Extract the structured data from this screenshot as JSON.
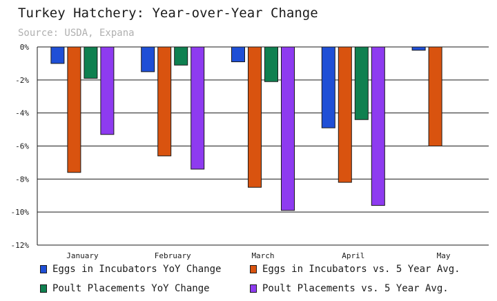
{
  "chart_data": {
    "type": "bar",
    "title": "Turkey Hatchery: Year-over-Year Change",
    "subtitle": "Source: USDA, Expana",
    "categories": [
      "January",
      "February",
      "March",
      "April",
      "May"
    ],
    "series": [
      {
        "name": "Eggs in Incubators YoY Change",
        "color": "#1f4fd6",
        "values": [
          -1.0,
          -1.5,
          -0.9,
          -4.9,
          -0.2
        ]
      },
      {
        "name": "Eggs in Incubators vs. 5 Year Avg.",
        "color": "#d9530f",
        "values": [
          -7.6,
          -6.6,
          -8.5,
          -8.2,
          -6.0
        ]
      },
      {
        "name": "Poult Placements YoY Change",
        "color": "#0f8050",
        "values": [
          -1.9,
          -1.1,
          -2.1,
          -4.4,
          null
        ]
      },
      {
        "name": "Poult Placements vs. 5 Year Avg.",
        "color": "#8e3bf0",
        "values": [
          -5.3,
          -7.4,
          -9.9,
          -9.6,
          null
        ]
      }
    ],
    "ylim": [
      -12,
      0
    ],
    "yticks": [
      0,
      -2,
      -4,
      -6,
      -8,
      -10,
      -12
    ],
    "ytick_labels": [
      "0%",
      "-2%",
      "-4%",
      "-6%",
      "-8%",
      "-10%",
      "-12%"
    ],
    "grid": true,
    "legend_position": "bottom"
  }
}
